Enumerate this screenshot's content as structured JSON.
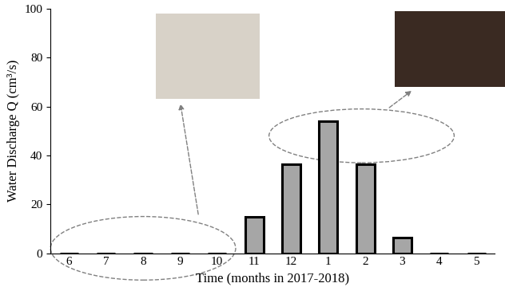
{
  "chart_data": {
    "type": "bar",
    "categories": [
      "6",
      "7",
      "8",
      "9",
      "10",
      "11",
      "12",
      "1",
      "2",
      "3",
      "4",
      "5"
    ],
    "values": [
      0,
      0,
      0,
      0,
      0,
      15,
      36.5,
      54,
      36.5,
      6.5,
      0,
      0
    ],
    "color": "#a6a6a6",
    "x_label": "Time (months in 2017-2018)",
    "y_label": "Water Discharge Q (cm³/s)",
    "ylim": [
      0,
      100
    ],
    "yticks": [
      0,
      20,
      40,
      60,
      80,
      100
    ],
    "grid": false
  }
}
